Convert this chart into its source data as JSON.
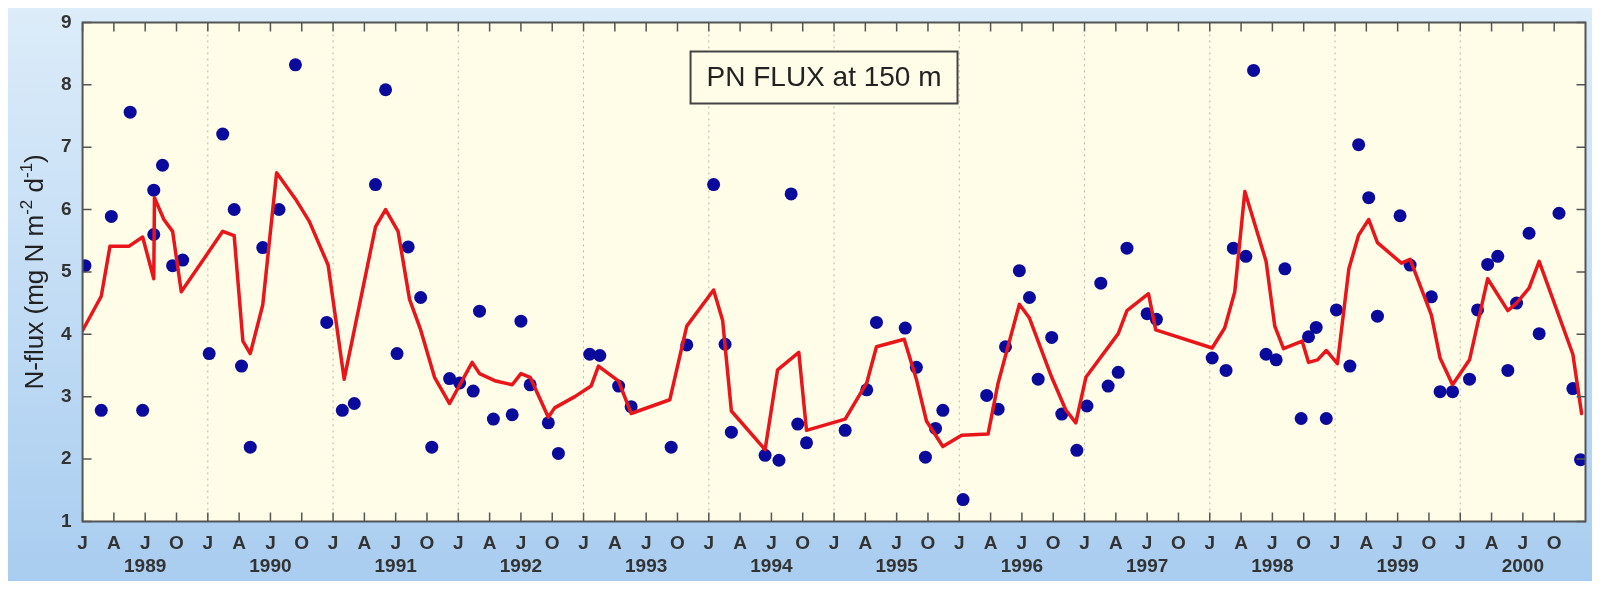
{
  "chart_data": {
    "type": "scatter",
    "title": "PN FLUX at 150 m",
    "ylabel": "N-flux (mg N m$^{-2}$ d$^{-1}$)",
    "xlim": [
      "1989-01",
      "2001-01"
    ],
    "ylim": [
      1,
      9
    ],
    "yticks": [
      1,
      2,
      3,
      4,
      5,
      6,
      7,
      8,
      9
    ],
    "xticks": [
      {
        "value": "1989-01",
        "label": "J"
      },
      {
        "value": "1989-04",
        "label": "A"
      },
      {
        "value": "1989-07",
        "label": "J\n1989"
      },
      {
        "value": "1989-10",
        "label": "O"
      },
      {
        "value": "1990-01",
        "label": "J"
      },
      {
        "value": "1990-04",
        "label": "A"
      },
      {
        "value": "1990-07",
        "label": "J\n1990"
      },
      {
        "value": "1990-10",
        "label": "O"
      },
      {
        "value": "1991-01",
        "label": "J"
      },
      {
        "value": "1991-04",
        "label": "A"
      },
      {
        "value": "1991-07",
        "label": "J\n1991"
      },
      {
        "value": "1991-10",
        "label": "O"
      },
      {
        "value": "1992-01",
        "label": "J"
      },
      {
        "value": "1992-04",
        "label": "A"
      },
      {
        "value": "1992-07",
        "label": "J\n1992"
      },
      {
        "value": "1992-10",
        "label": "O"
      },
      {
        "value": "1993-01",
        "label": "J"
      },
      {
        "value": "1993-04",
        "label": "A"
      },
      {
        "value": "1993-07",
        "label": "J\n1993"
      },
      {
        "value": "1993-10",
        "label": "O"
      },
      {
        "value": "1994-01",
        "label": "J"
      },
      {
        "value": "1994-04",
        "label": "A"
      },
      {
        "value": "1994-07",
        "label": "J\n1994"
      },
      {
        "value": "1994-10",
        "label": "O"
      },
      {
        "value": "1995-01",
        "label": "J"
      },
      {
        "value": "1995-04",
        "label": "A"
      },
      {
        "value": "1995-07",
        "label": "J\n1995"
      },
      {
        "value": "1995-10",
        "label": "O"
      },
      {
        "value": "1996-01",
        "label": "J"
      },
      {
        "value": "1996-04",
        "label": "A"
      },
      {
        "value": "1996-07",
        "label": "J\n1996"
      },
      {
        "value": "1996-10",
        "label": "O"
      },
      {
        "value": "1997-01",
        "label": "J"
      },
      {
        "value": "1997-04",
        "label": "A"
      },
      {
        "value": "1997-07",
        "label": "J\n1997"
      },
      {
        "value": "1997-10",
        "label": "O"
      },
      {
        "value": "1998-01",
        "label": "J"
      },
      {
        "value": "1998-04",
        "label": "A"
      },
      {
        "value": "1998-07",
        "label": "J\n1998"
      },
      {
        "value": "1998-10",
        "label": "O"
      },
      {
        "value": "1999-01",
        "label": "J"
      },
      {
        "value": "1999-04",
        "label": "A"
      },
      {
        "value": "1999-07",
        "label": "J\n1999"
      },
      {
        "value": "1999-10",
        "label": "O"
      },
      {
        "value": "2000-01",
        "label": "J"
      },
      {
        "value": "2000-04",
        "label": "A"
      },
      {
        "value": "2000-07",
        "label": "J\n2000"
      },
      {
        "value": "2000-10",
        "label": "O"
      }
    ],
    "grid": "x",
    "legend": false,
    "series": [
      {
        "type": "scatter",
        "color": "#0a0a9c",
        "marker": "circle",
        "x": [
          "1989-01-08",
          "1989-02-25",
          "1989-03-24",
          "1989-05-18",
          "1989-06-24",
          "1989-07-26",
          "1989-07-26",
          "1989-08-21",
          "1989-09-20",
          "1989-10-19",
          "1990-01-05",
          "1990-02-14",
          "1990-03-17",
          "1990-04-08",
          "1990-05-03",
          "1990-06-09",
          "1990-07-26",
          "1990-09-13",
          "1990-12-13",
          "1991-01-28",
          "1991-03-02",
          "1991-05-03",
          "1991-06-02",
          "1991-07-05",
          "1991-08-07",
          "1991-09-13",
          "1991-10-15",
          "1991-12-06",
          "1992-01-05",
          "1992-02-14",
          "1992-03-02",
          "1992-04-12",
          "1992-06-06",
          "1992-07-01",
          "1992-07-28",
          "1992-09-20",
          "1992-10-19",
          "1993-01-19",
          "1993-02-18",
          "1993-04-12",
          "1993-05-18",
          "1993-09-13",
          "1993-10-28",
          "1994-01-15",
          "1994-02-18",
          "1994-03-06",
          "1994-06-13",
          "1994-07-23",
          "1994-08-28",
          "1994-09-17",
          "1994-10-12",
          "1995-02-03",
          "1995-04-05",
          "1995-05-03",
          "1995-07-26",
          "1995-08-28",
          "1995-09-24",
          "1995-10-23",
          "1995-11-14",
          "1996-01-12",
          "1996-03-20",
          "1996-04-23",
          "1996-05-14",
          "1996-06-24",
          "1996-07-23",
          "1996-08-18",
          "1996-09-27",
          "1996-10-26",
          "1996-12-09",
          "1997-01-08",
          "1997-02-18",
          "1997-03-09",
          "1997-04-08",
          "1997-05-03",
          "1997-07-01",
          "1997-07-28",
          "1998-01-08",
          "1998-02-18",
          "1998-03-09",
          "1998-04-15",
          "1998-05-07",
          "1998-06-13",
          "1998-07-12",
          "1998-08-07",
          "1998-09-24",
          "1998-10-15",
          "1998-11-07",
          "1998-12-06",
          "1999-01-05",
          "1999-02-14",
          "1999-03-09",
          "1999-04-08",
          "1999-05-03",
          "1999-07-08",
          "1999-08-07",
          "1999-10-08",
          "1999-11-03",
          "1999-12-09",
          "2000-01-28",
          "2000-02-21",
          "2000-03-20",
          "2000-04-19",
          "2000-05-18",
          "2000-06-13",
          "2000-07-19",
          "2000-08-18",
          "2000-10-15",
          "2000-11-25",
          "2000-12-17"
        ],
        "values": [
          5.1,
          2.78,
          5.89,
          7.56,
          2.78,
          6.31,
          5.6,
          6.71,
          5.1,
          5.19,
          3.69,
          7.21,
          6.0,
          3.49,
          2.19,
          5.39,
          6.0,
          8.32,
          4.19,
          2.78,
          2.89,
          6.4,
          7.92,
          3.69,
          5.4,
          4.59,
          2.19,
          3.29,
          3.22,
          3.09,
          4.37,
          2.64,
          2.71,
          4.21,
          3.19,
          2.58,
          2.09,
          3.68,
          3.66,
          3.17,
          2.84,
          2.19,
          3.83,
          6.4,
          3.84,
          2.43,
          2.06,
          1.98,
          6.25,
          2.56,
          2.26,
          2.46,
          3.11,
          4.19,
          4.1,
          3.47,
          2.03,
          2.49,
          2.78,
          1.35,
          3.02,
          2.8,
          3.8,
          5.02,
          4.59,
          3.28,
          3.95,
          2.72,
          2.14,
          2.85,
          4.82,
          3.17,
          3.39,
          5.38,
          4.33,
          4.24,
          3.62,
          3.42,
          5.38,
          5.25,
          8.23,
          3.68,
          3.59,
          5.05,
          2.65,
          3.96,
          4.11,
          2.65,
          4.39,
          3.49,
          7.04,
          6.19,
          4.29,
          5.9,
          5.11,
          4.6,
          3.08,
          3.08,
          3.28,
          4.39,
          5.12,
          5.25,
          3.42,
          4.5,
          5.62,
          4.01,
          5.94,
          3.13,
          1.99
        ]
      },
      {
        "type": "line",
        "color": "#e8161b",
        "marker": "none",
        "line_style": "solid",
        "x": [
          "1989-01-01",
          "1989-02-25",
          "1989-03-20",
          "1989-05-14",
          "1989-06-24",
          "1989-07-26",
          "1989-07-28",
          "1989-08-25",
          "1989-09-20",
          "1989-10-15",
          "1990-02-14",
          "1990-03-17",
          "1990-04-12",
          "1990-05-03",
          "1990-06-09",
          "1990-07-19",
          "1990-09-13",
          "1990-10-23",
          "1990-12-17",
          "1991-02-03",
          "1991-05-03",
          "1991-06-02",
          "1991-07-08",
          "1991-08-11",
          "1991-09-13",
          "1991-10-23",
          "1991-12-06",
          "1992-02-11",
          "1992-03-02",
          "1992-04-19",
          "1992-06-06",
          "1992-07-01",
          "1992-07-28",
          "1992-09-20",
          "1992-10-08",
          "1992-12-06",
          "1993-01-23",
          "1993-02-14",
          "1993-04-12",
          "1993-05-18",
          "1993-09-09",
          "1993-10-28",
          "1994-01-15",
          "1994-02-11",
          "1994-03-06",
          "1994-06-13",
          "1994-07-19",
          "1994-09-20",
          "1994-10-12",
          "1995-02-03",
          "1995-04-05",
          "1995-05-03",
          "1995-07-23",
          "1995-08-28",
          "1995-09-27",
          "1995-11-14",
          "1996-01-08",
          "1996-03-24",
          "1996-04-23",
          "1996-06-24",
          "1996-07-23",
          "1996-09-27",
          "1996-11-07",
          "1996-12-06",
          "1997-01-05",
          "1997-04-08",
          "1997-05-03",
          "1997-07-05",
          "1997-07-26",
          "1998-01-08",
          "1998-02-14",
          "1998-03-13",
          "1998-04-12",
          "1998-06-13",
          "1998-07-08",
          "1998-08-03",
          "1998-09-27",
          "1998-10-15",
          "1998-11-11",
          "1998-12-06",
          "1999-01-08",
          "1999-02-11",
          "1999-03-09",
          "1999-04-08",
          "1999-05-03",
          "1999-07-12",
          "1999-08-07",
          "1999-10-08",
          "1999-11-03",
          "1999-12-09",
          "2000-01-28",
          "2000-03-20",
          "2000-05-18",
          "2000-06-13",
          "2000-07-19",
          "2000-08-18",
          "2000-11-25",
          "2000-12-20"
        ],
        "values": [
          4.06,
          4.61,
          5.41,
          5.41,
          5.56,
          4.89,
          6.19,
          5.84,
          5.65,
          4.68,
          5.65,
          5.58,
          3.89,
          3.69,
          4.47,
          6.59,
          6.17,
          5.81,
          5.11,
          3.28,
          5.72,
          6.0,
          5.65,
          4.56,
          4.07,
          3.31,
          2.89,
          3.55,
          3.37,
          3.25,
          3.19,
          3.37,
          3.31,
          2.67,
          2.82,
          3.0,
          3.17,
          3.49,
          3.25,
          2.73,
          2.95,
          4.13,
          4.71,
          4.22,
          2.77,
          2.15,
          3.43,
          3.71,
          2.46,
          2.64,
          3.22,
          3.8,
          3.92,
          3.28,
          2.61,
          2.2,
          2.38,
          2.4,
          3.22,
          4.48,
          4.26,
          3.31,
          2.79,
          2.58,
          3.31,
          4.01,
          4.38,
          4.65,
          4.07,
          3.78,
          4.1,
          4.68,
          6.29,
          5.17,
          4.13,
          3.77,
          3.89,
          3.55,
          3.59,
          3.74,
          3.53,
          5.05,
          5.59,
          5.84,
          5.47,
          5.14,
          5.2,
          4.31,
          3.62,
          3.19,
          3.59,
          4.89,
          4.38,
          4.5,
          4.74,
          5.17,
          3.68,
          2.73
        ]
      }
    ]
  }
}
